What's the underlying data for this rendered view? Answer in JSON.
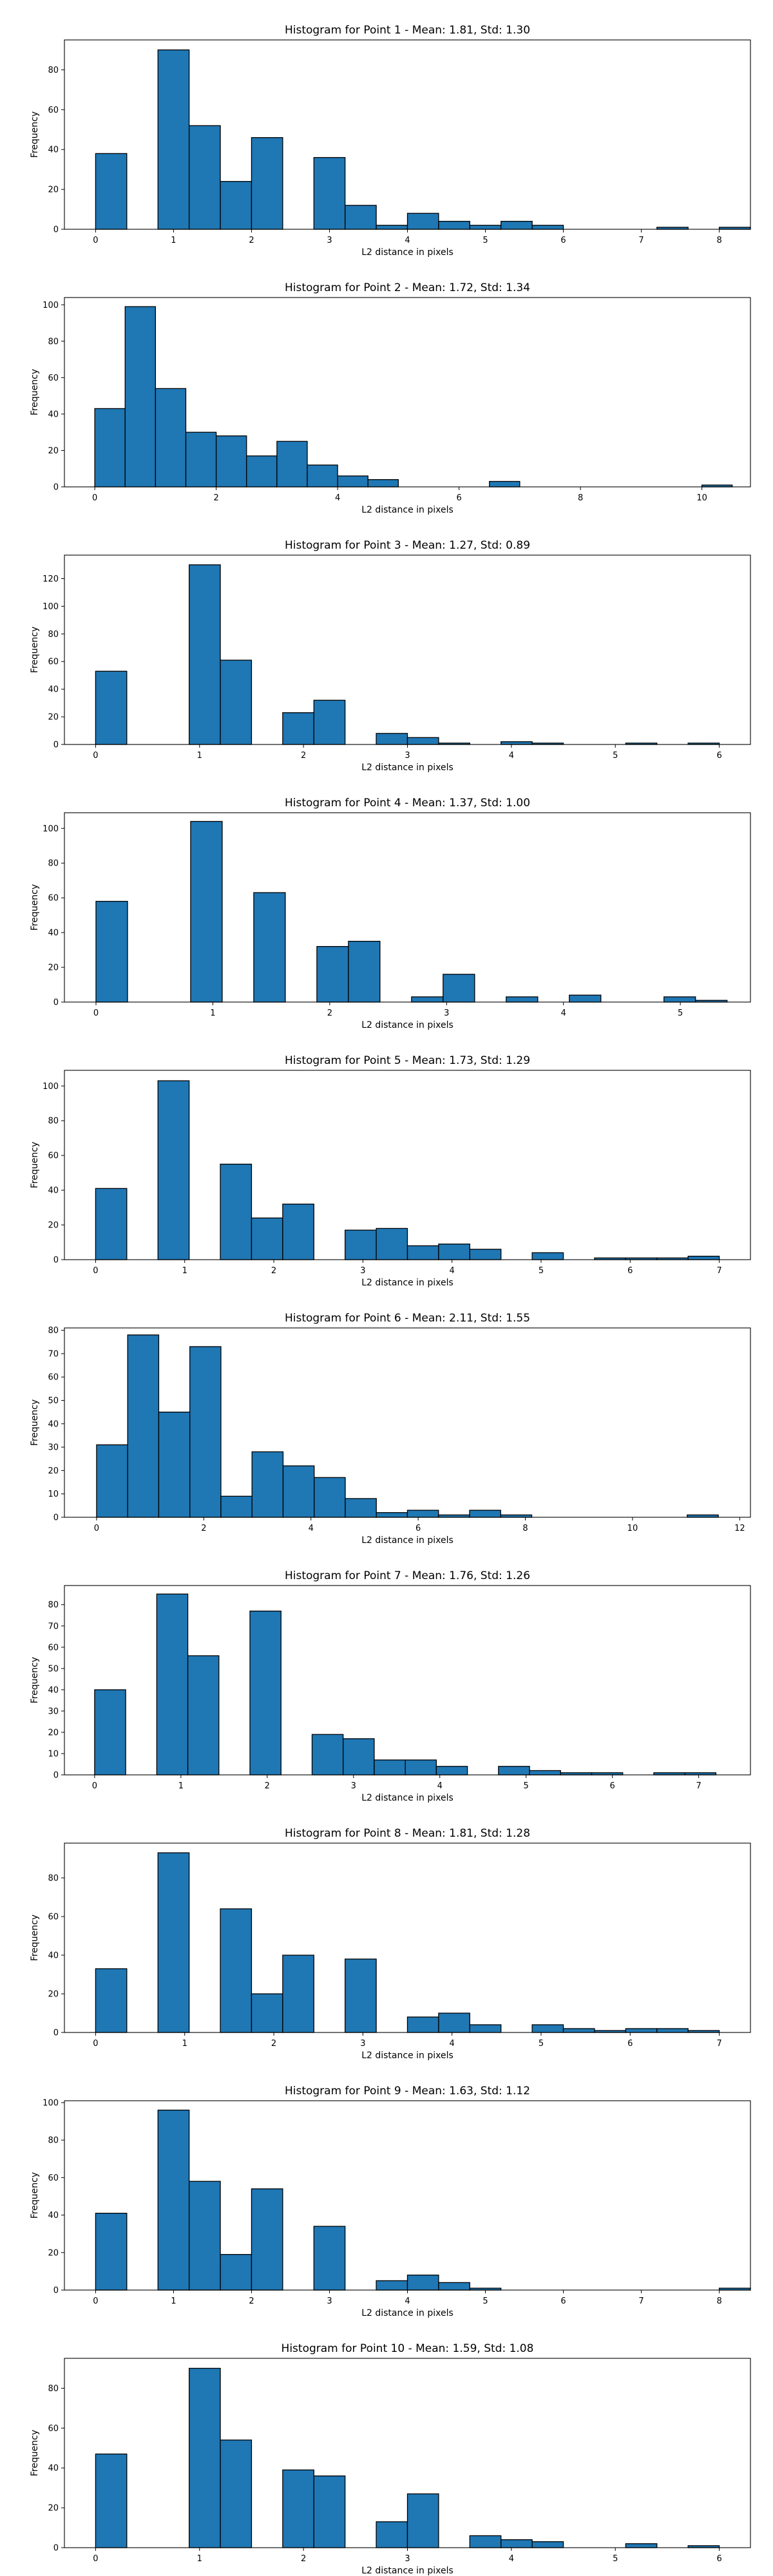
{
  "chart_data": [
    {
      "type": "bar",
      "title": "Histogram for Point 1 - Mean: 1.81, Std: 1.30",
      "xlabel": "L2 distance in pixels",
      "ylabel": "Frequency",
      "xlim": [
        -0.4,
        8.4
      ],
      "ylim": [
        0,
        95
      ],
      "xticks": [
        0,
        1,
        2,
        3,
        4,
        5,
        6,
        7,
        8
      ],
      "yticks": [
        0,
        20,
        40,
        60,
        80
      ],
      "bins": {
        "start": 0,
        "width": 0.4,
        "values": [
          38,
          0,
          90,
          52,
          24,
          46,
          0,
          36,
          12,
          2,
          8,
          4,
          2,
          4,
          2,
          0,
          0,
          0,
          1,
          0,
          1
        ]
      }
    },
    {
      "type": "bar",
      "title": "Histogram for Point 2 - Mean: 1.72, Std: 1.34",
      "xlabel": "L2 distance in pixels",
      "ylabel": "Frequency",
      "xlim": [
        -0.5,
        10.8
      ],
      "ylim": [
        0,
        104
      ],
      "xticks": [
        0,
        2,
        4,
        6,
        8,
        10
      ],
      "yticks": [
        0,
        20,
        40,
        60,
        80,
        100
      ],
      "bins": {
        "start": 0,
        "width": 0.5,
        "values": [
          43,
          99,
          54,
          30,
          28,
          17,
          25,
          12,
          6,
          4,
          0,
          0,
          0,
          3,
          0,
          0,
          0,
          0,
          0,
          0,
          1
        ]
      }
    },
    {
      "type": "bar",
      "title": "Histogram for Point 3 - Mean: 1.27, Std: 0.89",
      "xlabel": "L2 distance in pixels",
      "ylabel": "Frequency",
      "xlim": [
        -0.3,
        6.3
      ],
      "ylim": [
        0,
        137
      ],
      "xticks": [
        0,
        1,
        2,
        3,
        4,
        5,
        6
      ],
      "yticks": [
        0,
        20,
        40,
        60,
        80,
        100,
        120
      ],
      "bins": {
        "start": 0,
        "width": 0.3,
        "values": [
          53,
          0,
          0,
          130,
          61,
          0,
          23,
          32,
          0,
          8,
          5,
          1,
          0,
          2,
          1,
          0,
          0,
          1,
          0,
          1
        ]
      }
    },
    {
      "type": "bar",
      "title": "Histogram for Point 4 - Mean: 1.37, Std: 1.00",
      "xlabel": "L2 distance in pixels",
      "ylabel": "Frequency",
      "xlim": [
        -0.27,
        5.6
      ],
      "ylim": [
        0,
        109
      ],
      "xticks": [
        0,
        1,
        2,
        3,
        4,
        5
      ],
      "yticks": [
        0,
        20,
        40,
        60,
        80,
        100
      ],
      "bins": {
        "start": 0,
        "width": 0.27,
        "values": [
          58,
          0,
          0,
          104,
          0,
          63,
          0,
          32,
          35,
          0,
          3,
          16,
          0,
          3,
          0,
          4,
          0,
          0,
          3,
          1
        ]
      }
    },
    {
      "type": "bar",
      "title": "Histogram for Point 5 - Mean: 1.73, Std: 1.29",
      "xlabel": "L2 distance in pixels",
      "ylabel": "Frequency",
      "xlim": [
        -0.35,
        7.35
      ],
      "ylim": [
        0,
        109
      ],
      "xticks": [
        0,
        1,
        2,
        3,
        4,
        5,
        6,
        7
      ],
      "yticks": [
        0,
        20,
        40,
        60,
        80,
        100
      ],
      "bins": {
        "start": 0,
        "width": 0.35,
        "values": [
          41,
          0,
          103,
          0,
          55,
          24,
          32,
          0,
          17,
          18,
          8,
          9,
          6,
          0,
          4,
          0,
          1,
          1,
          1,
          2
        ]
      }
    },
    {
      "type": "bar",
      "title": "Histogram for Point 6 - Mean: 2.11, Std: 1.55",
      "xlabel": "L2 distance in pixels",
      "ylabel": "Frequency",
      "xlim": [
        -0.6,
        12.2
      ],
      "ylim": [
        0,
        81
      ],
      "xticks": [
        0,
        2,
        4,
        6,
        8,
        10,
        12
      ],
      "yticks": [
        0,
        10,
        20,
        30,
        40,
        50,
        60,
        70,
        80
      ],
      "bins": {
        "start": 0,
        "width": 0.58,
        "values": [
          31,
          78,
          45,
          73,
          9,
          28,
          22,
          17,
          8,
          2,
          3,
          1,
          3,
          1,
          0,
          0,
          0,
          0,
          0,
          1
        ]
      }
    },
    {
      "type": "bar",
      "title": "Histogram for Point 7 - Mean: 1.76, Std: 1.26",
      "xlabel": "L2 distance in pixels",
      "ylabel": "Frequency",
      "xlim": [
        -0.35,
        7.6
      ],
      "ylim": [
        0,
        89
      ],
      "xticks": [
        0,
        1,
        2,
        3,
        4,
        5,
        6,
        7
      ],
      "yticks": [
        0,
        10,
        20,
        30,
        40,
        50,
        60,
        70,
        80
      ],
      "bins": {
        "start": 0,
        "width": 0.36,
        "values": [
          40,
          0,
          85,
          56,
          0,
          77,
          0,
          19,
          17,
          7,
          7,
          4,
          0,
          4,
          2,
          1,
          1,
          0,
          1,
          1
        ]
      }
    },
    {
      "type": "bar",
      "title": "Histogram for Point 8 - Mean: 1.81, Std: 1.28",
      "xlabel": "L2 distance in pixels",
      "ylabel": "Frequency",
      "xlim": [
        -0.35,
        7.35
      ],
      "ylim": [
        0,
        98
      ],
      "xticks": [
        0,
        1,
        2,
        3,
        4,
        5,
        6,
        7
      ],
      "yticks": [
        0,
        20,
        40,
        60,
        80
      ],
      "bins": {
        "start": 0,
        "width": 0.35,
        "values": [
          33,
          0,
          93,
          0,
          64,
          20,
          40,
          0,
          38,
          0,
          8,
          10,
          4,
          0,
          4,
          2,
          1,
          2,
          2,
          1
        ]
      }
    },
    {
      "type": "bar",
      "title": "Histogram for Point 9 - Mean: 1.63, Std: 1.12",
      "xlabel": "L2 distance in pixels",
      "ylabel": "Frequency",
      "xlim": [
        -0.4,
        8.4
      ],
      "ylim": [
        0,
        101
      ],
      "xticks": [
        0,
        1,
        2,
        3,
        4,
        5,
        6,
        7,
        8
      ],
      "yticks": [
        0,
        20,
        40,
        60,
        80,
        100
      ],
      "bins": {
        "start": 0,
        "width": 0.4,
        "values": [
          41,
          0,
          96,
          58,
          19,
          54,
          0,
          34,
          0,
          5,
          8,
          4,
          1,
          0,
          0,
          0,
          0,
          0,
          0,
          0,
          1
        ]
      }
    },
    {
      "type": "bar",
      "title": "Histogram for Point 10 - Mean: 1.59, Std: 1.08",
      "xlabel": "L2 distance in pixels",
      "ylabel": "Frequency",
      "xlim": [
        -0.3,
        6.3
      ],
      "ylim": [
        0,
        95
      ],
      "xticks": [
        0,
        1,
        2,
        3,
        4,
        5,
        6
      ],
      "yticks": [
        0,
        20,
        40,
        60,
        80
      ],
      "bins": {
        "start": 0,
        "width": 0.3,
        "values": [
          47,
          0,
          0,
          90,
          54,
          0,
          39,
          36,
          0,
          13,
          27,
          0,
          6,
          4,
          3,
          0,
          0,
          2,
          0,
          1
        ]
      }
    }
  ]
}
